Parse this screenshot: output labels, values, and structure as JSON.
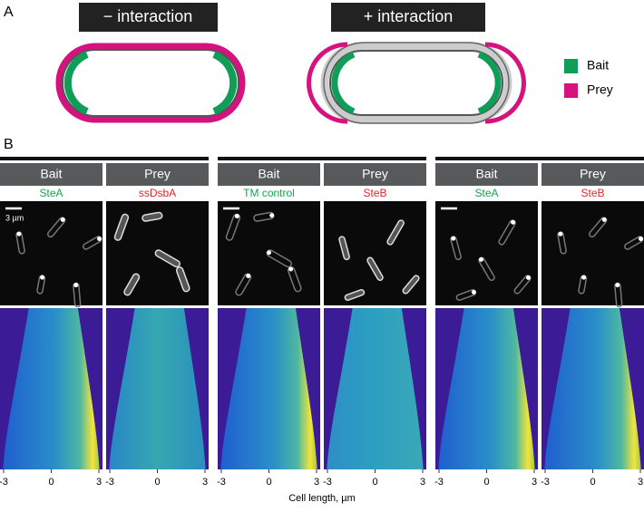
{
  "panel_a": {
    "label": "A",
    "titles": [
      "− interaction",
      "+ interaction"
    ],
    "legend": [
      {
        "name": "Bait",
        "color": "#0f9d58"
      },
      {
        "name": "Prey",
        "color": "#d6127f"
      }
    ]
  },
  "panel_b": {
    "label": "B",
    "scale_bar": "3 µm",
    "groups": [
      {
        "columns": [
          {
            "header": "Bait",
            "protein": "SteA",
            "color": "#14a650"
          },
          {
            "header": "Prey",
            "protein": "ssDsbA",
            "color": "#e0262a"
          }
        ]
      },
      {
        "columns": [
          {
            "header": "Bait",
            "protein": "TM control",
            "color": "#14a650"
          },
          {
            "header": "Prey",
            "protein": "SteB",
            "color": "#e0262a"
          }
        ]
      },
      {
        "columns": [
          {
            "header": "Bait",
            "protein": "SteA",
            "color": "#14a650"
          },
          {
            "header": "Prey",
            "protein": "SteB",
            "color": "#e0262a"
          }
        ]
      }
    ],
    "axis": {
      "xlim": [
        -3,
        3
      ],
      "xticks": [
        -3,
        0,
        3
      ],
      "label": "Cell length, µm"
    }
  }
}
